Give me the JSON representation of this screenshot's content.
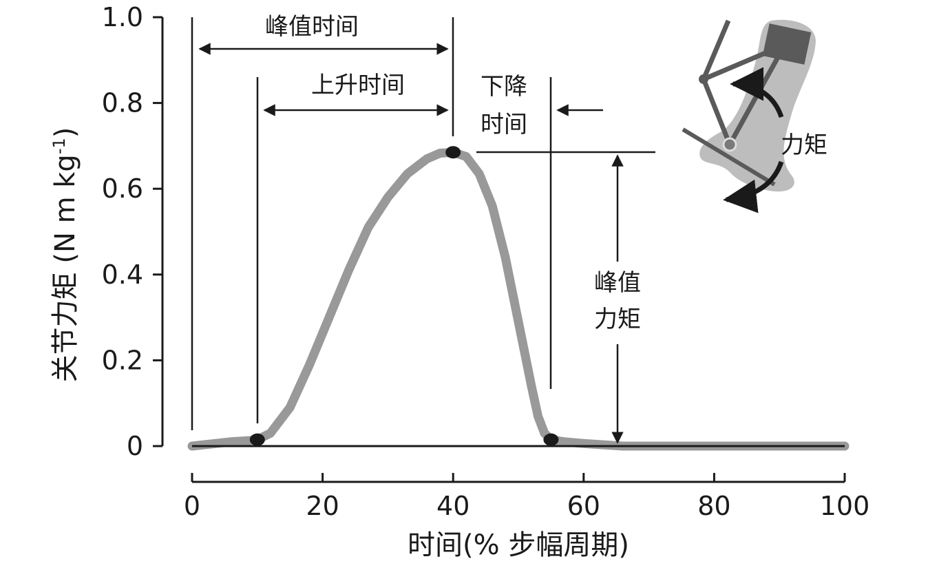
{
  "chart_data": {
    "type": "line",
    "xlabel": "时间(% 步幅周期)",
    "ylabel": "关节力矩 (N m kg⁻¹)",
    "ylabel_main": "关节力矩 (N m kg",
    "ylabel_sup": "-1",
    "ylabel_close": ")",
    "xlim": [
      0,
      100
    ],
    "ylim": [
      0,
      1.0
    ],
    "x_ticks": [
      0,
      20,
      40,
      60,
      80,
      100
    ],
    "x_tick_labels": [
      "0",
      "20",
      "40",
      "60",
      "80",
      "100"
    ],
    "y_ticks": [
      0,
      0.2,
      0.4,
      0.6,
      0.8,
      1.0
    ],
    "y_tick_labels": [
      "0",
      "0.2",
      "0.4",
      "0.6",
      "0.8",
      "1.0"
    ],
    "grid": false,
    "series": [
      {
        "color": "#999999",
        "x": [
          0,
          3,
          6,
          9,
          10,
          12,
          15,
          18,
          21,
          24,
          27,
          30,
          33,
          36,
          38,
          40,
          42,
          44,
          46,
          48,
          50,
          52,
          53,
          54,
          55,
          57,
          60,
          63,
          66,
          70,
          80,
          90,
          100
        ],
        "y": [
          0.0,
          0.005,
          0.01,
          0.013,
          0.015,
          0.03,
          0.09,
          0.19,
          0.3,
          0.41,
          0.51,
          0.58,
          0.635,
          0.67,
          0.683,
          0.685,
          0.675,
          0.635,
          0.56,
          0.44,
          0.29,
          0.14,
          0.07,
          0.03,
          0.015,
          0.01,
          0.006,
          0.003,
          0.0,
          0.0,
          0.0,
          0.0,
          0.0
        ]
      }
    ],
    "key_points": [
      {
        "x": 10,
        "y": 0.015
      },
      {
        "x": 40,
        "y": 0.685
      },
      {
        "x": 55,
        "y": 0.015
      }
    ],
    "annotations": {
      "peak_time": "峰值时间",
      "rise_time": "上升时间",
      "fall_line1": "下降",
      "fall_line2": "时间",
      "peak_moment_line1": "峰值",
      "peak_moment_line2": "力矩",
      "moment_label": "力矩"
    }
  }
}
